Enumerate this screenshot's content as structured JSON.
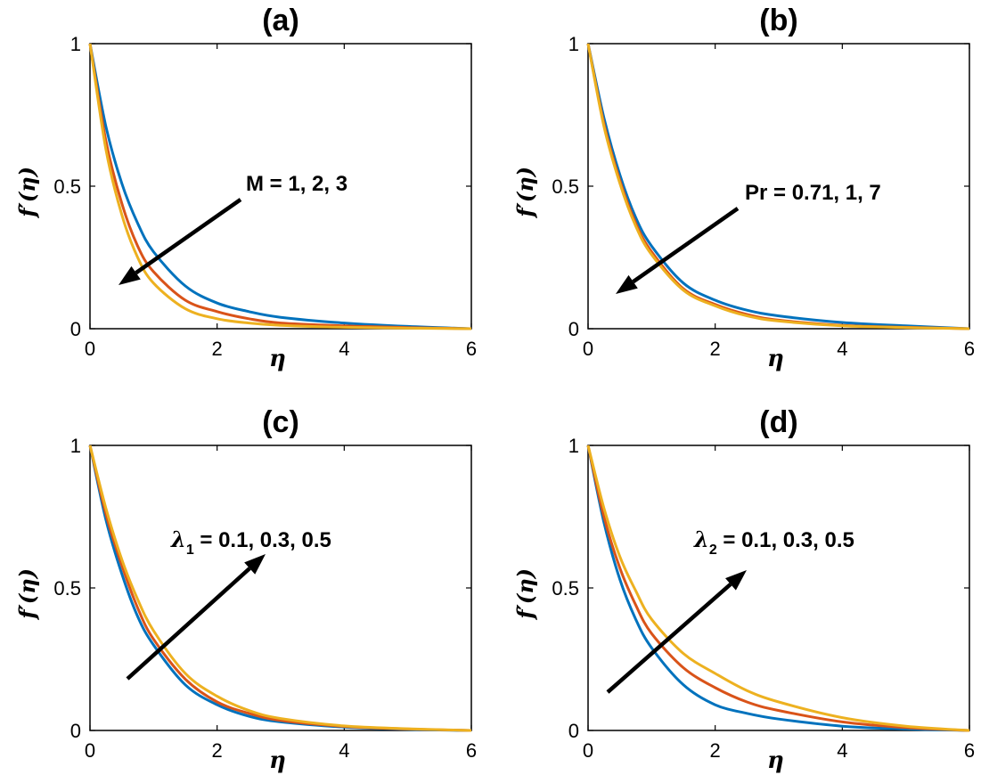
{
  "colors": {
    "series1": "#0072BD",
    "series2": "#D95319",
    "series3": "#EDB120"
  },
  "chart_data": [
    {
      "type": "line",
      "title": "(a)",
      "xlabel": "η",
      "ylabel": "f′(η)",
      "xlim": [
        0,
        6
      ],
      "ylim": [
        0,
        1
      ],
      "xticks": [
        "0",
        "2",
        "4",
        "6"
      ],
      "yticks": [
        "0",
        "0.5",
        "1"
      ],
      "annotation": {
        "text": "M = 1, 2, 3",
        "main": "M = 1, 2, 3",
        "sub": "",
        "rest": "",
        "arrow_direction": "decreasing"
      },
      "x": [
        0,
        0.25,
        0.5,
        0.75,
        1,
        1.5,
        2,
        2.5,
        3,
        4,
        5,
        6
      ],
      "series": [
        {
          "values": [
            1,
            0.71,
            0.51,
            0.37,
            0.27,
            0.15,
            0.09,
            0.06,
            0.04,
            0.02,
            0.008,
            0
          ]
        },
        {
          "values": [
            1,
            0.66,
            0.44,
            0.29,
            0.2,
            0.1,
            0.06,
            0.035,
            0.02,
            0.01,
            0.004,
            0
          ]
        },
        {
          "values": [
            1,
            0.63,
            0.4,
            0.25,
            0.16,
            0.07,
            0.035,
            0.02,
            0.012,
            0.005,
            0.002,
            0
          ]
        }
      ]
    },
    {
      "type": "line",
      "title": "(b)",
      "xlabel": "η",
      "ylabel": "f′(η)",
      "xlim": [
        0,
        6
      ],
      "ylim": [
        0,
        1
      ],
      "xticks": [
        "0",
        "2",
        "4",
        "6"
      ],
      "yticks": [
        "0",
        "0.5",
        "1"
      ],
      "annotation": {
        "text": "Pr = 0.71, 1, 7",
        "main": "Pr = 0.71, 1, 7",
        "sub": "",
        "rest": "",
        "arrow_direction": "decreasing"
      },
      "x": [
        0,
        0.25,
        0.5,
        0.75,
        1,
        1.5,
        2,
        2.5,
        3,
        4,
        5,
        6
      ],
      "series": [
        {
          "values": [
            1,
            0.74,
            0.54,
            0.39,
            0.29,
            0.16,
            0.1,
            0.065,
            0.045,
            0.022,
            0.01,
            0
          ]
        },
        {
          "values": [
            1,
            0.72,
            0.52,
            0.37,
            0.27,
            0.14,
            0.085,
            0.05,
            0.03,
            0.012,
            0.005,
            0
          ]
        },
        {
          "values": [
            1,
            0.71,
            0.51,
            0.36,
            0.26,
            0.135,
            0.08,
            0.045,
            0.027,
            0.01,
            0.004,
            0
          ]
        }
      ]
    },
    {
      "type": "line",
      "title": "(c)",
      "xlabel": "η",
      "ylabel": "f′(η)",
      "xlim": [
        0,
        6
      ],
      "ylim": [
        0,
        1
      ],
      "xticks": [
        "0",
        "2",
        "4",
        "6"
      ],
      "yticks": [
        "0",
        "0.5",
        "1"
      ],
      "annotation": {
        "text": "λ1 = 0.1, 0.3, 0.5",
        "main": "λ",
        "sub": "1",
        "rest": " = 0.1, 0.3, 0.5",
        "arrow_direction": "increasing"
      },
      "x": [
        0,
        0.25,
        0.5,
        0.75,
        1,
        1.5,
        2,
        2.5,
        3,
        4,
        5,
        6
      ],
      "series": [
        {
          "values": [
            1,
            0.74,
            0.55,
            0.4,
            0.3,
            0.16,
            0.09,
            0.05,
            0.03,
            0.012,
            0.004,
            0
          ]
        },
        {
          "values": [
            1,
            0.76,
            0.58,
            0.43,
            0.32,
            0.18,
            0.1,
            0.06,
            0.035,
            0.014,
            0.005,
            0
          ]
        },
        {
          "values": [
            1,
            0.78,
            0.6,
            0.46,
            0.35,
            0.2,
            0.12,
            0.07,
            0.042,
            0.016,
            0.006,
            0
          ]
        }
      ]
    },
    {
      "type": "line",
      "title": "(d)",
      "xlabel": "η",
      "ylabel": "f′(η)",
      "xlim": [
        0,
        6
      ],
      "ylim": [
        0,
        1
      ],
      "xticks": [
        "0",
        "2",
        "4",
        "6"
      ],
      "yticks": [
        "0",
        "0.5",
        "1"
      ],
      "annotation": {
        "text": "λ2 = 0.1, 0.3, 0.5",
        "main": "λ",
        "sub": "2",
        "rest": " = 0.1, 0.3, 0.5",
        "arrow_direction": "increasing"
      },
      "x": [
        0,
        0.25,
        0.5,
        0.75,
        1,
        1.5,
        2,
        2.5,
        3,
        4,
        5,
        6
      ],
      "series": [
        {
          "values": [
            1,
            0.73,
            0.53,
            0.39,
            0.29,
            0.16,
            0.09,
            0.06,
            0.04,
            0.015,
            0.005,
            0
          ]
        },
        {
          "values": [
            1,
            0.75,
            0.57,
            0.44,
            0.34,
            0.22,
            0.15,
            0.1,
            0.07,
            0.03,
            0.01,
            0
          ]
        },
        {
          "values": [
            1,
            0.78,
            0.61,
            0.49,
            0.39,
            0.27,
            0.2,
            0.14,
            0.1,
            0.045,
            0.015,
            0
          ]
        }
      ]
    }
  ]
}
